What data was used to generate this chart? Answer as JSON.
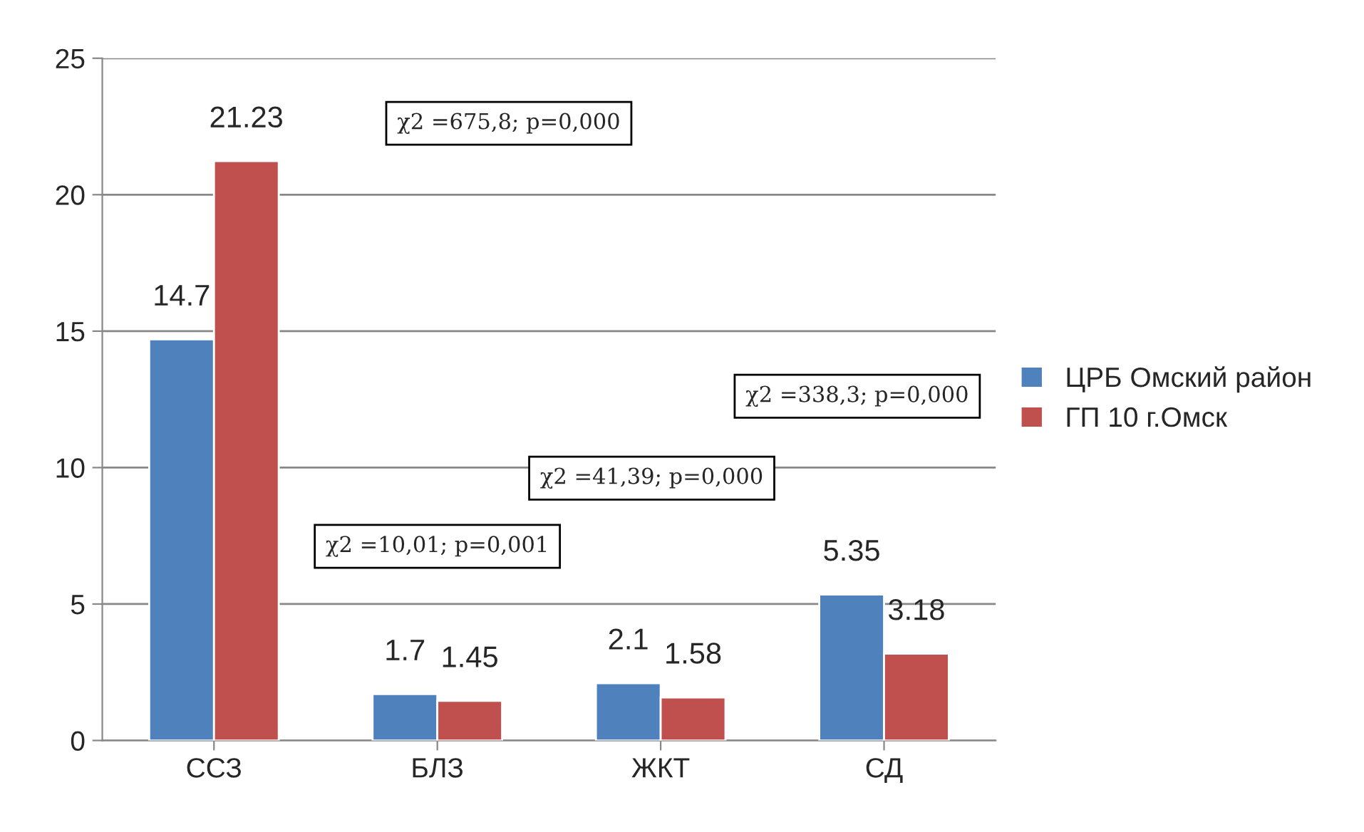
{
  "chart_data": {
    "type": "bar",
    "categories": [
      "ССЗ",
      "БЛЗ",
      "ЖКТ",
      "СД"
    ],
    "series": [
      {
        "name": "ЦРБ Омский район",
        "color": "#4f81bd",
        "values": [
          14.7,
          1.7,
          2.1,
          5.35
        ]
      },
      {
        "name": "ГП 10 г.Омск",
        "color": "#c0504d",
        "values": [
          21.23,
          1.45,
          1.58,
          3.18
        ]
      }
    ],
    "ylim": [
      0,
      25
    ],
    "yticks": [
      0,
      5,
      10,
      15,
      20,
      25
    ],
    "grid": "y",
    "legend": "right",
    "data_labels": true,
    "annotations": [
      "χ2 =675,8; p=0,000",
      "χ2 =10,01; p=0,001",
      "χ2 =41,39; p=0,000",
      "χ2 =338,3; p=0,000"
    ]
  }
}
